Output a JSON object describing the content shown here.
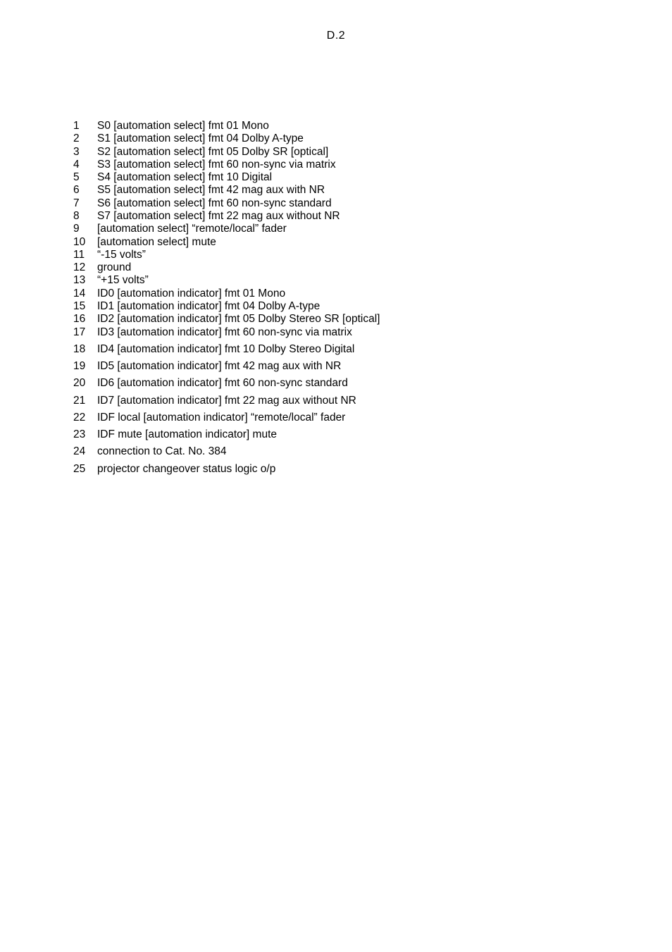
{
  "page_number_label": "D.2",
  "text_color": "#000000",
  "background_color": "#ffffff",
  "font_family": "Helvetica, Arial, sans-serif",
  "body_font_size_pt": 12,
  "rows": [
    {
      "n": "1",
      "text": "S0 [automation select] fmt 01 Mono",
      "gap": false
    },
    {
      "n": "2",
      "text": "S1 [automation select] fmt 04 Dolby A-type",
      "gap": false
    },
    {
      "n": "3",
      "text": "S2 [automation select] fmt 05 Dolby SR [optical]",
      "gap": false
    },
    {
      "n": "4",
      "text": "S3 [automation select] fmt 60 non-sync via matrix",
      "gap": false
    },
    {
      "n": "5",
      "text": "S4 [automation select] fmt 10 Digital",
      "gap": false
    },
    {
      "n": "6",
      "text": "S5 [automation select] fmt 42 mag aux with NR",
      "gap": false
    },
    {
      "n": "7",
      "text": "S6 [automation select] fmt 60 non-sync standard",
      "gap": false
    },
    {
      "n": "8",
      "text": "S7 [automation select] fmt 22 mag aux without NR",
      "gap": false
    },
    {
      "n": "9",
      "text": "[automation select] “remote/local” fader",
      "gap": false
    },
    {
      "n": "10",
      "text": "[automation select] mute",
      "gap": false
    },
    {
      "n": "11",
      "text": "“-15 volts”",
      "gap": false
    },
    {
      "n": "12",
      "text": "ground",
      "gap": false
    },
    {
      "n": "13",
      "text": "“+15 volts”",
      "gap": false
    },
    {
      "n": "14",
      "text": "ID0 [automation indicator] fmt 01 Mono",
      "gap": false
    },
    {
      "n": "15",
      "text": "ID1 [automation indicator] fmt 04 Dolby A-type",
      "gap": false
    },
    {
      "n": "16",
      "text": "ID2 [automation indicator] fmt 05 Dolby Stereo SR [optical]",
      "gap": false
    },
    {
      "n": "17",
      "text": "ID3 [automation indicator] fmt 60 non-sync via matrix",
      "gap": false
    },
    {
      "n": "18",
      "text": "ID4 [automation indicator] fmt 10 Dolby Stereo Digital",
      "gap": true
    },
    {
      "n": "19",
      "text": "ID5 [automation indicator] fmt 42 mag aux with NR",
      "gap": true
    },
    {
      "n": "20",
      "text": "ID6 [automation indicator] fmt 60 non-sync standard",
      "gap": true
    },
    {
      "n": "21",
      "text": "ID7 [automation indicator] fmt 22 mag aux without NR",
      "gap": true
    },
    {
      "n": "22",
      "text": "IDF local [automation indicator] “remote/local” fader",
      "gap": true
    },
    {
      "n": "23",
      "text": "IDF mute [automation indicator] mute",
      "gap": true
    },
    {
      "n": "24",
      "text": "connection to Cat. No. 384",
      "gap": true
    },
    {
      "n": "25",
      "text": "projector changeover status logic o/p",
      "gap": true
    }
  ]
}
